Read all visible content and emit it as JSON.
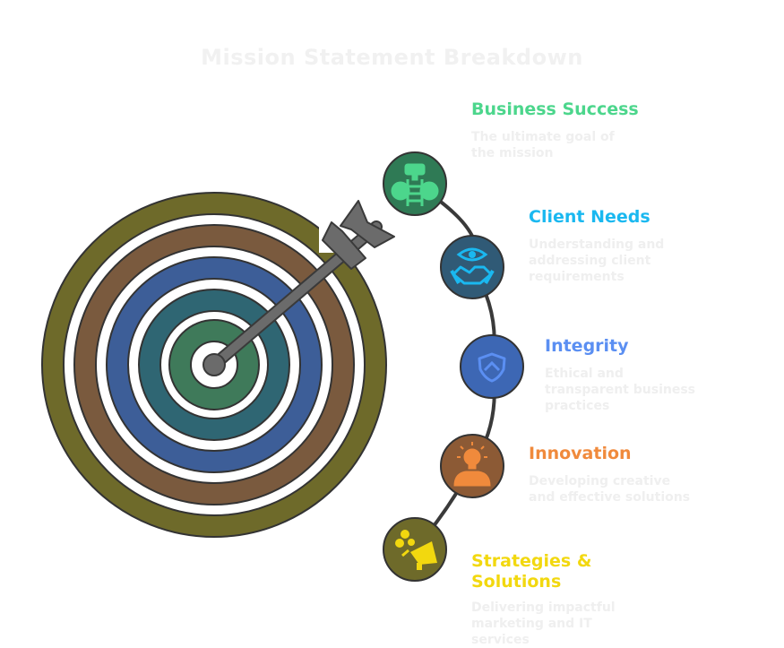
{
  "title": "Mission Statement Breakdown",
  "items": [
    {
      "title": "Business Success",
      "description": "The ultimate goal of the mission",
      "color": "#4cd68c",
      "icon_fill": "#2f7a55",
      "icon": "trophy-ladder-icon"
    },
    {
      "title": "Client Needs",
      "description": "Understanding and addressing client requirements",
      "color": "#1ab8f0",
      "icon_fill": "#305a76",
      "icon": "eye-handshake-icon"
    },
    {
      "title": "Integrity",
      "description": "Ethical and transparent business practices",
      "color": "#5b8ff2",
      "icon_fill": "#3d67b4",
      "icon": "shield-icon"
    },
    {
      "title": "Innovation",
      "description": "Developing creative and effective solutions",
      "color": "#f08a3c",
      "icon_fill": "#8c5a35",
      "icon": "lightbulb-person-icon"
    },
    {
      "title": "Strategies & Solutions",
      "description": "Delivering impactful marketing and IT services",
      "color": "#f2d80f",
      "icon_fill": "#6e6a2a",
      "icon": "megaphone-icon"
    }
  ]
}
